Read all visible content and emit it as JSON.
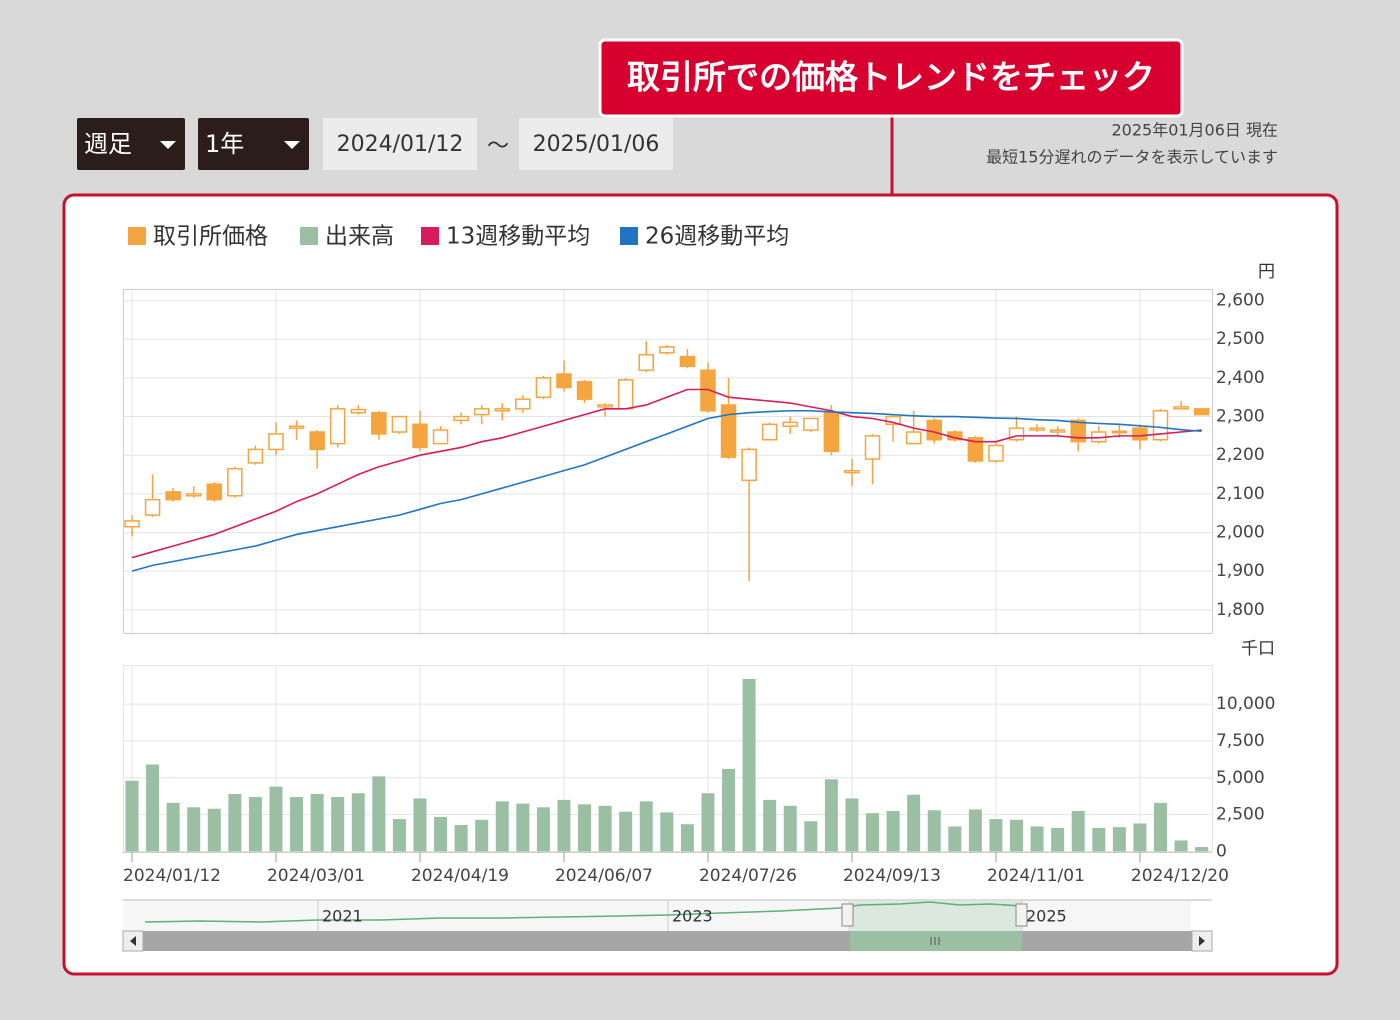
{
  "header": {
    "callout": "取引所での価格トレンドをチェック",
    "interval": "週足",
    "period": "1年",
    "date_from": "2024/01/12",
    "date_separator": "～",
    "date_to": "2025/01/06",
    "as_of": "2025年01月06日 現在",
    "delay_note": "最短15分遅れのデータを表示しています"
  },
  "chart_data": [
    {
      "type": "candlestick",
      "ylabel": "円",
      "ylim": [
        1740,
        2630
      ],
      "grid": true,
      "yticks": [
        {
          "value": 1800,
          "label": "1,800"
        },
        {
          "value": 1900,
          "label": "1,900"
        },
        {
          "value": 2000,
          "label": "2,000"
        },
        {
          "value": 2100,
          "label": "2,100"
        },
        {
          "value": 2200,
          "label": "2,200"
        },
        {
          "value": 2300,
          "label": "2,300"
        },
        {
          "value": 2400,
          "label": "2,400"
        },
        {
          "value": 2500,
          "label": "2,500"
        },
        {
          "value": 2600,
          "label": "2,600"
        }
      ],
      "series": [
        {
          "name": "取引所価格",
          "color": "#f5a53f",
          "open": [
            2015,
            2045,
            2105,
            2095,
            2125,
            2095,
            2180,
            2215,
            2270,
            2260,
            2230,
            2310,
            2310,
            2260,
            2280,
            2230,
            2290,
            2305,
            2315,
            2320,
            2350,
            2410,
            2390,
            2325,
            2320,
            2420,
            2465,
            2455,
            2420,
            2330,
            2135,
            2240,
            2275,
            2265,
            2310,
            2155,
            2190,
            2280,
            2230,
            2290,
            2260,
            2245,
            2185,
            2240,
            2265,
            2260,
            2290,
            2235,
            2258,
            2270,
            2240,
            2320,
            2320
          ],
          "high": [
            2045,
            2150,
            2115,
            2120,
            2130,
            2170,
            2225,
            2285,
            2290,
            2265,
            2330,
            2330,
            2315,
            2300,
            2315,
            2275,
            2310,
            2330,
            2335,
            2355,
            2405,
            2445,
            2395,
            2335,
            2400,
            2495,
            2485,
            2475,
            2440,
            2400,
            2220,
            2285,
            2300,
            2295,
            2330,
            2190,
            2255,
            2305,
            2315,
            2295,
            2265,
            2250,
            2235,
            2300,
            2280,
            2275,
            2295,
            2275,
            2280,
            2280,
            2320,
            2340,
            2320
          ],
          "low": [
            1990,
            2040,
            2080,
            2090,
            2080,
            2090,
            2175,
            2200,
            2240,
            2165,
            2220,
            2305,
            2240,
            2255,
            2210,
            2230,
            2280,
            2280,
            2290,
            2310,
            2345,
            2365,
            2335,
            2300,
            2320,
            2415,
            2460,
            2425,
            2310,
            2190,
            1875,
            2240,
            2255,
            2260,
            2200,
            2120,
            2125,
            2235,
            2230,
            2230,
            2235,
            2180,
            2180,
            2235,
            2260,
            2250,
            2210,
            2230,
            2245,
            2215,
            2235,
            2320,
            2305
          ],
          "close": [
            2030,
            2085,
            2085,
            2100,
            2085,
            2165,
            2215,
            2255,
            2275,
            2215,
            2320,
            2318,
            2255,
            2300,
            2220,
            2265,
            2300,
            2320,
            2320,
            2345,
            2400,
            2375,
            2345,
            2330,
            2395,
            2460,
            2480,
            2430,
            2315,
            2195,
            2215,
            2280,
            2285,
            2295,
            2210,
            2160,
            2250,
            2300,
            2260,
            2240,
            2240,
            2185,
            2225,
            2270,
            2270,
            2265,
            2235,
            2260,
            2262,
            2240,
            2315,
            2325,
            2305
          ]
        },
        {
          "name": "13週移動平均",
          "color": "#d81b5c",
          "values": [
            1935,
            1950,
            1965,
            1980,
            1995,
            2015,
            2035,
            2055,
            2080,
            2100,
            2125,
            2150,
            2170,
            2185,
            2200,
            2210,
            2220,
            2235,
            2245,
            2260,
            2275,
            2290,
            2305,
            2320,
            2320,
            2330,
            2350,
            2370,
            2370,
            2350,
            2345,
            2340,
            2335,
            2325,
            2315,
            2300,
            2295,
            2285,
            2270,
            2260,
            2245,
            2235,
            2235,
            2250,
            2250,
            2250,
            2245,
            2245,
            2250,
            2250,
            2255,
            2260,
            2265
          ]
        },
        {
          "name": "26週移動平均",
          "color": "#1f75c4",
          "values": [
            1900,
            1915,
            1925,
            1935,
            1945,
            1955,
            1965,
            1980,
            1995,
            2005,
            2015,
            2025,
            2035,
            2045,
            2060,
            2075,
            2085,
            2100,
            2115,
            2130,
            2145,
            2160,
            2175,
            2195,
            2215,
            2235,
            2255,
            2275,
            2295,
            2305,
            2310,
            2313,
            2315,
            2315,
            2312,
            2310,
            2308,
            2305,
            2302,
            2300,
            2300,
            2298,
            2296,
            2295,
            2292,
            2290,
            2285,
            2282,
            2280,
            2276,
            2272,
            2266,
            2262
          ]
        }
      ]
    },
    {
      "type": "bar",
      "ylabel": "千口",
      "ylim": [
        0,
        12650
      ],
      "grid": true,
      "yticks": [
        0,
        {
          "value": 2500,
          "label": "2,500"
        },
        {
          "value": 5000,
          "label": "5,000"
        },
        {
          "value": 7500,
          "label": "7,500"
        },
        {
          "value": 10000,
          "label": "10,000"
        }
      ],
      "categories": [
        "2024/01/12",
        null,
        null,
        null,
        null,
        null,
        null,
        "2024/03/01",
        null,
        null,
        null,
        null,
        null,
        null,
        "2024/04/19",
        null,
        null,
        null,
        null,
        null,
        null,
        "2024/06/07",
        null,
        null,
        null,
        null,
        null,
        null,
        "2024/07/26",
        null,
        null,
        null,
        null,
        null,
        null,
        "2024/09/13",
        null,
        null,
        null,
        null,
        null,
        null,
        "2024/11/01",
        null,
        null,
        null,
        null,
        null,
        null,
        "2024/12/20",
        null,
        null,
        null
      ],
      "series": [
        {
          "name": "出来高",
          "color": "#9bbfa3",
          "values": [
            4800,
            5900,
            3300,
            3000,
            2900,
            3900,
            3700,
            4400,
            3700,
            3900,
            3700,
            3950,
            5100,
            2200,
            3600,
            2350,
            1800,
            2150,
            3400,
            3250,
            3000,
            3500,
            3200,
            3100,
            2700,
            3400,
            2650,
            1850,
            3950,
            5600,
            11700,
            3500,
            3100,
            2050,
            4900,
            3600,
            2600,
            2750,
            3850,
            2800,
            1700,
            2850,
            2200,
            2150,
            1700,
            1600,
            2750,
            1600,
            1650,
            1900,
            3300,
            750,
            300
          ]
        }
      ]
    }
  ],
  "navigator": {
    "labels": [
      "2021",
      "2023",
      "2025"
    ]
  }
}
